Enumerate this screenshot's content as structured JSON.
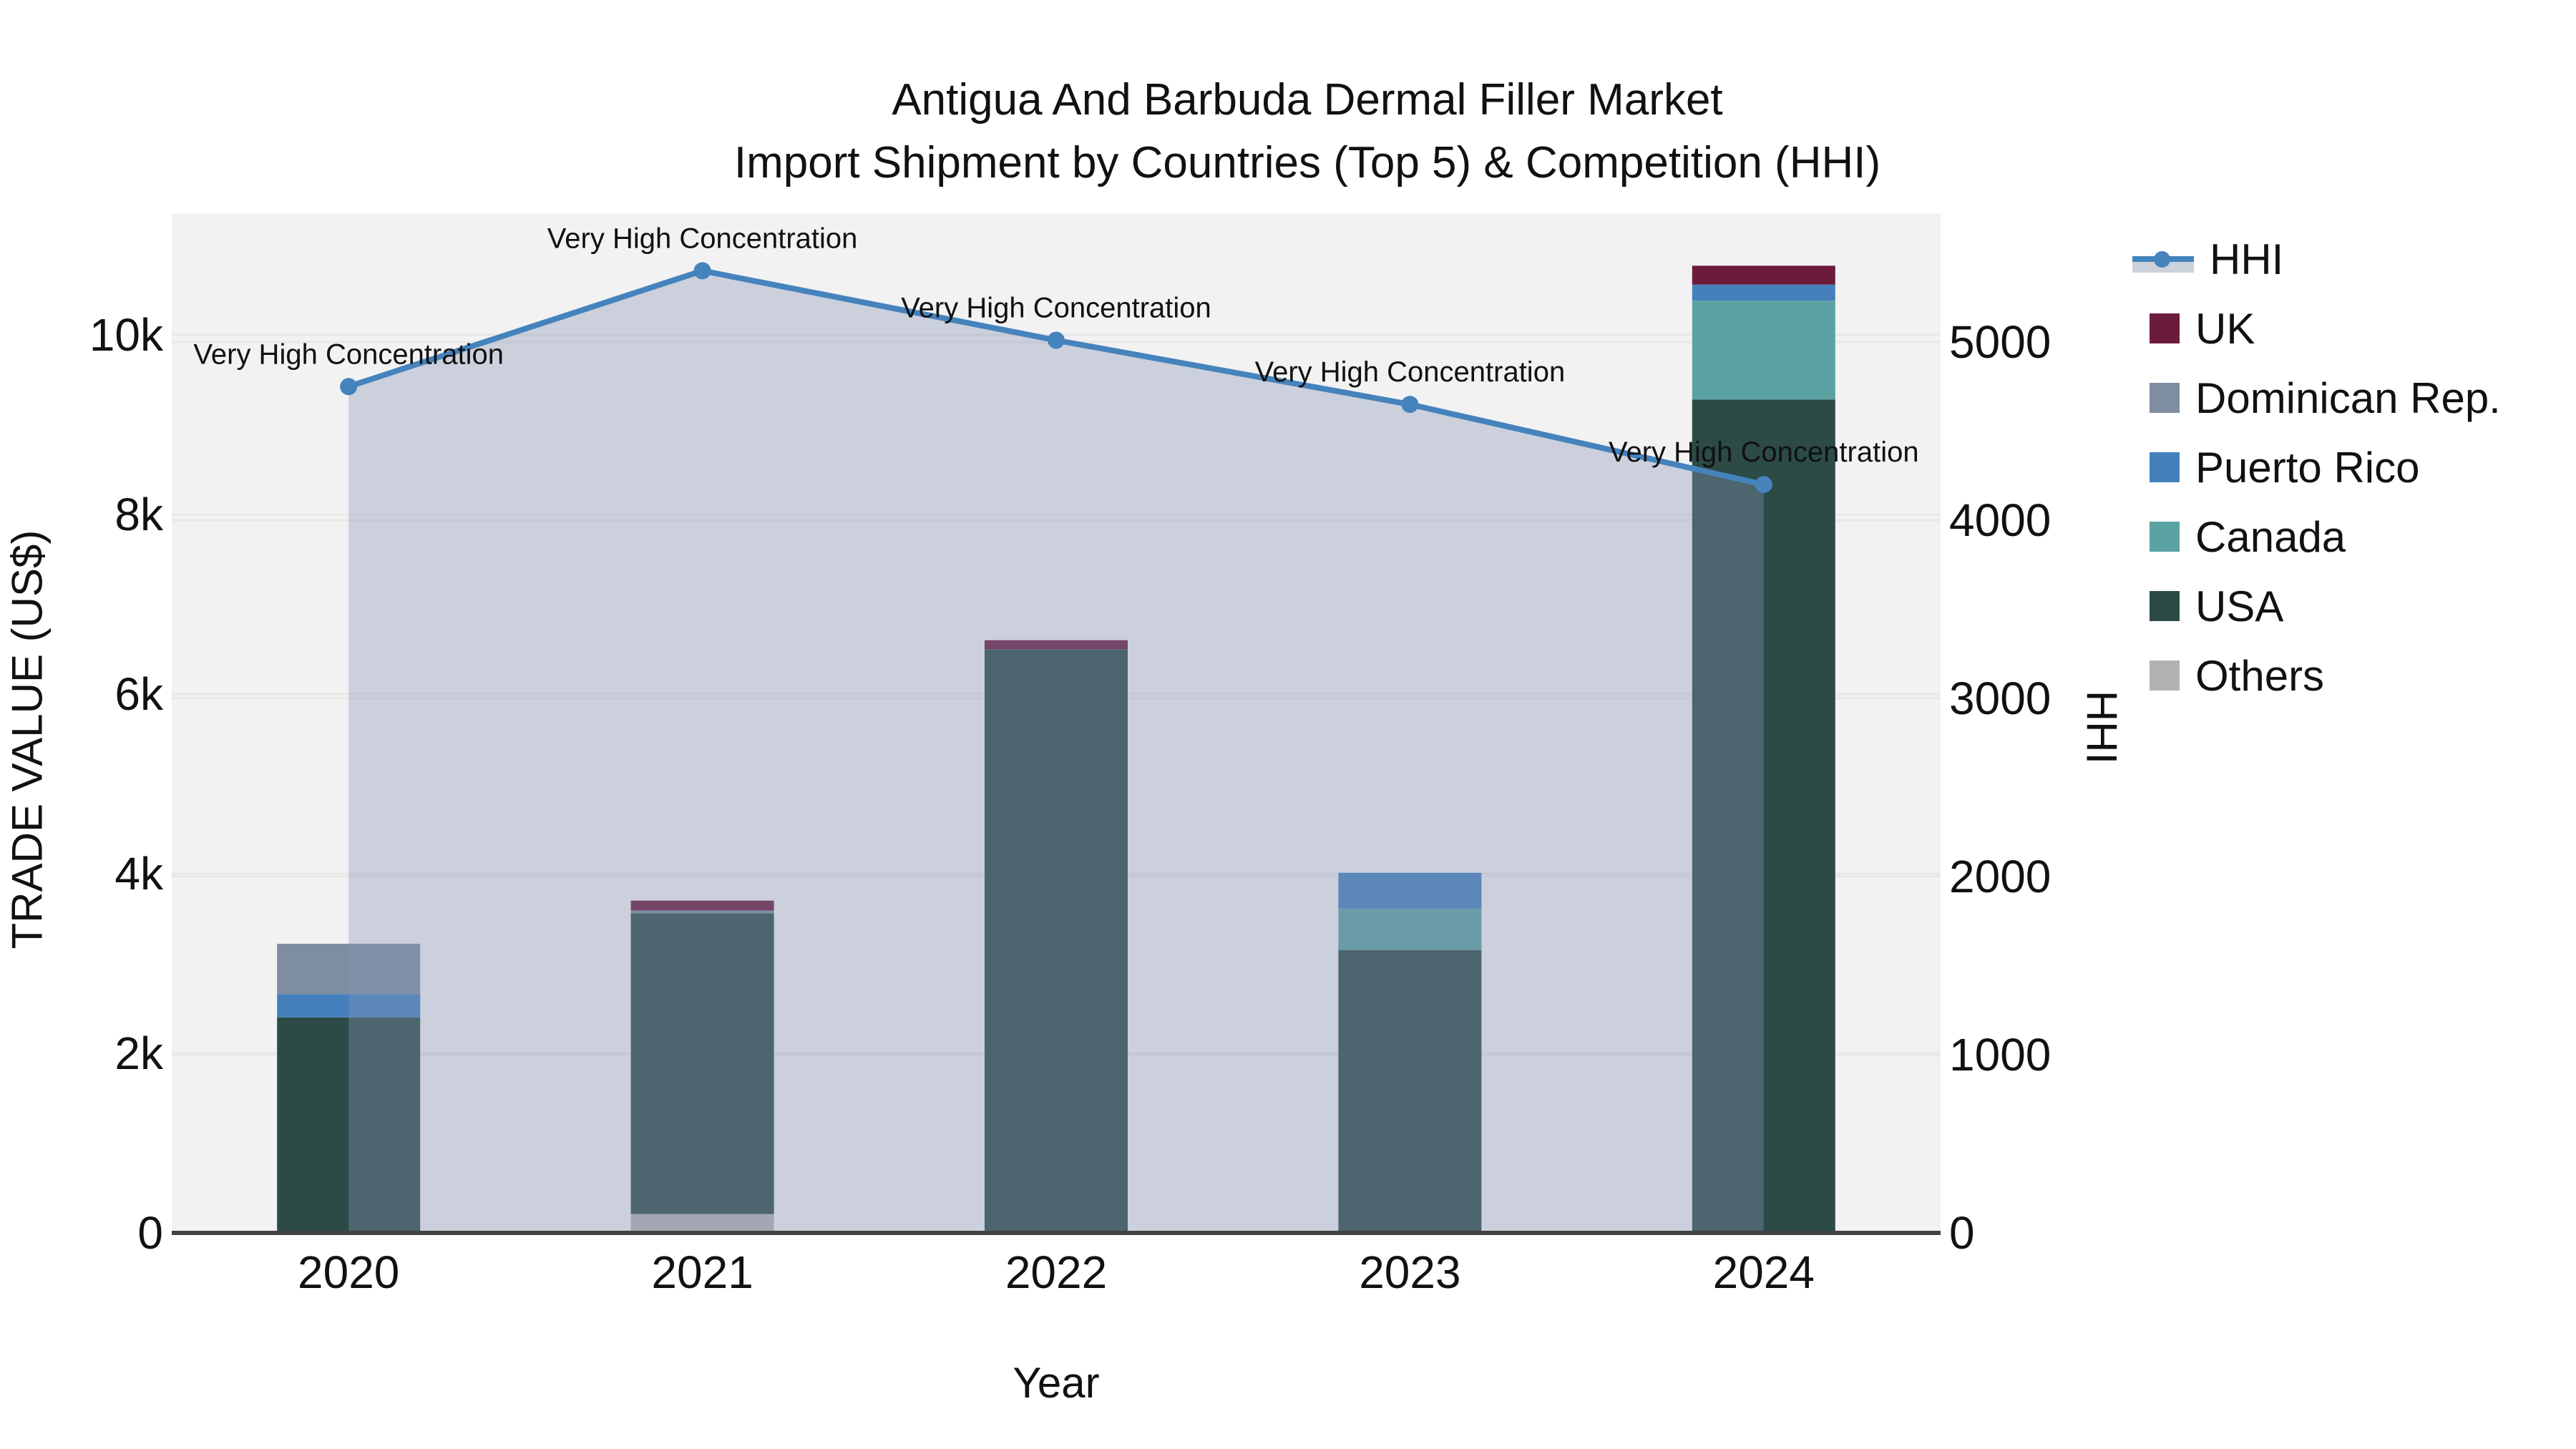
{
  "title": {
    "line1": "Antigua And Barbuda Dermal Filler Market",
    "line2": "Import Shipment by Countries (Top 5) & Competition (HHI)"
  },
  "axes": {
    "x_title": "Year",
    "y_left_title": "TRADE VALUE (US$)",
    "y_right_title": "HHI"
  },
  "legend": {
    "items": [
      {
        "label": "HHI",
        "type": "line",
        "color": "#4583bd"
      },
      {
        "label": "UK",
        "type": "bar",
        "color": "#6b1c3d"
      },
      {
        "label": "Dominican Rep.",
        "type": "bar",
        "color": "#7f8da0"
      },
      {
        "label": "Puerto Rico",
        "type": "bar",
        "color": "#4580bd"
      },
      {
        "label": "Canada",
        "type": "bar",
        "color": "#5ba2a2"
      },
      {
        "label": "USA",
        "type": "bar",
        "color": "#2c4b47"
      },
      {
        "label": "Others",
        "type": "bar",
        "color": "#b2b2b2"
      }
    ]
  },
  "chart_data": {
    "type": "bar",
    "subtype": "stacked-bar-with-line",
    "title": "Antigua And Barbuda Dermal Filler Market Import Shipment by Countries (Top 5) & Competition (HHI)",
    "categories": [
      "2020",
      "2021",
      "2022",
      "2023",
      "2024"
    ],
    "xlabel": "Year",
    "ylabel_left": "TRADE VALUE (US$)",
    "ylabel_right": "HHI",
    "y_left_ticks": [
      {
        "value": 0,
        "label": "0"
      },
      {
        "value": 2000,
        "label": "2k"
      },
      {
        "value": 4000,
        "label": "4k"
      },
      {
        "value": 6000,
        "label": "6k"
      },
      {
        "value": 8000,
        "label": "8k"
      },
      {
        "value": 10000,
        "label": "10k"
      }
    ],
    "y_left_max": 10000,
    "y_right_ticks": [
      {
        "value": 0,
        "label": "0"
      },
      {
        "value": 1000,
        "label": "1000"
      },
      {
        "value": 2000,
        "label": "2000"
      },
      {
        "value": 3000,
        "label": "3000"
      },
      {
        "value": 4000,
        "label": "4000"
      },
      {
        "value": 5000,
        "label": "5000"
      }
    ],
    "y_right_max": 5000,
    "series": [
      {
        "name": "Others",
        "color": "#b2b2b2",
        "values": [
          0,
          210,
          0,
          0,
          0
        ]
      },
      {
        "name": "USA",
        "color": "#2c4b47",
        "values": [
          2400,
          3350,
          6500,
          3150,
          9280
        ]
      },
      {
        "name": "Canada",
        "color": "#5ba2a2",
        "values": [
          0,
          0,
          0,
          460,
          1100
        ]
      },
      {
        "name": "Puerto Rico",
        "color": "#4580bd",
        "values": [
          260,
          0,
          0,
          400,
          180
        ]
      },
      {
        "name": "Dominican Rep.",
        "color": "#7f8da0",
        "values": [
          560,
          30,
          0,
          0,
          0
        ]
      },
      {
        "name": "UK",
        "color": "#6b1c3d",
        "values": [
          0,
          110,
          100,
          0,
          210
        ]
      }
    ],
    "line_series": {
      "name": "HHI",
      "color": "#4583bd",
      "area_fill": "rgba(133,148,179,0.36)",
      "values": [
        4750,
        5400,
        5010,
        4650,
        4200
      ]
    },
    "annotations": [
      "Very High Concentration",
      "Very High Concentration",
      "Very High Concentration",
      "Very High Concentration",
      "Very High Concentration"
    ],
    "grid": true,
    "legend_position": "right"
  }
}
